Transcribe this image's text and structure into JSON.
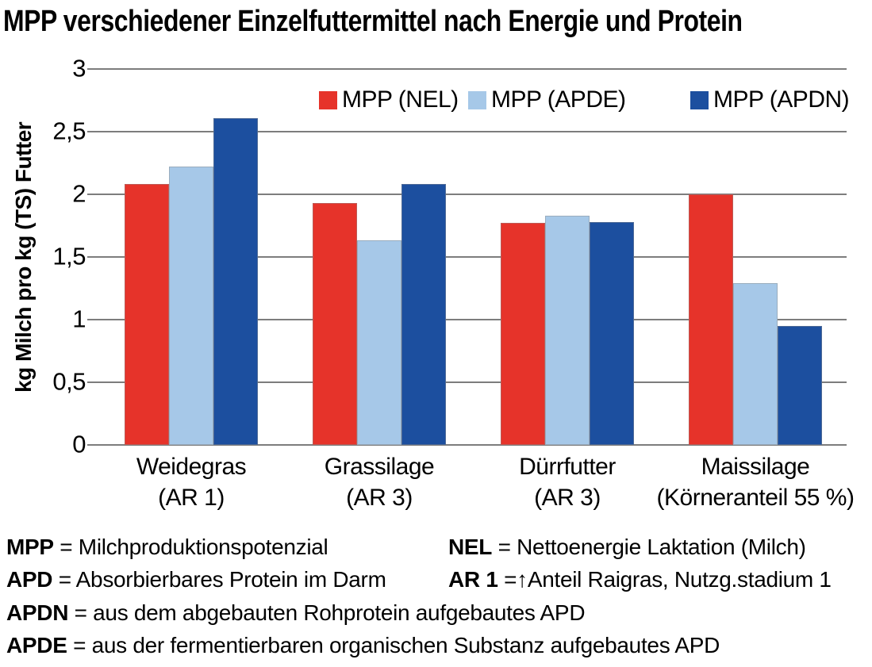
{
  "title": "MPP verschiedener Einzelfuttermittel nach Energie und Protein",
  "chart_data": {
    "type": "bar",
    "title": "MPP verschiedener Einzelfuttermittel nach Energie und Protein",
    "xlabel": "",
    "ylabel": "kg Milch pro kg (TS) Futter",
    "ylim": [
      0,
      3
    ],
    "grid": true,
    "legend_position": "top-inside",
    "yticks": [
      {
        "value": 0,
        "label": "0"
      },
      {
        "value": 0.5,
        "label": "0,5"
      },
      {
        "value": 1,
        "label": "1"
      },
      {
        "value": 1.5,
        "label": "1,5"
      },
      {
        "value": 2,
        "label": "2"
      },
      {
        "value": 2.5,
        "label": "2,5"
      },
      {
        "value": 3,
        "label": "3"
      }
    ],
    "categories": [
      {
        "line1": "Weidegras",
        "line2": "(AR 1)"
      },
      {
        "line1": "Grassilage",
        "line2": "(AR 3)"
      },
      {
        "line1": "Dürrfutter",
        "line2": "(AR 3)"
      },
      {
        "line1": "Maissilage",
        "line2": "(Körneranteil 55 %)"
      }
    ],
    "series": [
      {
        "name": "MPP (NEL)",
        "color": "#e6332a",
        "values": [
          2.08,
          1.93,
          1.77,
          2.0
        ]
      },
      {
        "name": "MPP (APDE)",
        "color": "#a6c8e8",
        "values": [
          2.22,
          1.63,
          1.83,
          1.29
        ]
      },
      {
        "name": "MPP (APDN)",
        "color": "#1c4f9f",
        "values": [
          2.61,
          2.08,
          1.78,
          0.95
        ]
      }
    ]
  },
  "colors": {
    "grid": "#7d7d7d",
    "text": "#000000",
    "background": "#ffffff"
  },
  "footnotes": {
    "items": [
      {
        "term": "MPP",
        "rest": " = Milchproduktionspotenzial"
      },
      {
        "term": "NEL",
        "rest": " = Nettoenergie Laktation (Milch)"
      },
      {
        "term": "APD",
        "rest": " = Absorbierbares Protein im Darm"
      },
      {
        "term": "AR 1",
        "rest": " =↑Anteil Raigras, Nutzg.stadium 1"
      },
      {
        "term": "APDN",
        "rest": " = aus dem abgebauten Rohprotein aufgebautes APD"
      },
      {
        "term": "APDE",
        "rest": " = aus der fermentierbaren organischen Substanz aufgebautes APD"
      }
    ]
  }
}
